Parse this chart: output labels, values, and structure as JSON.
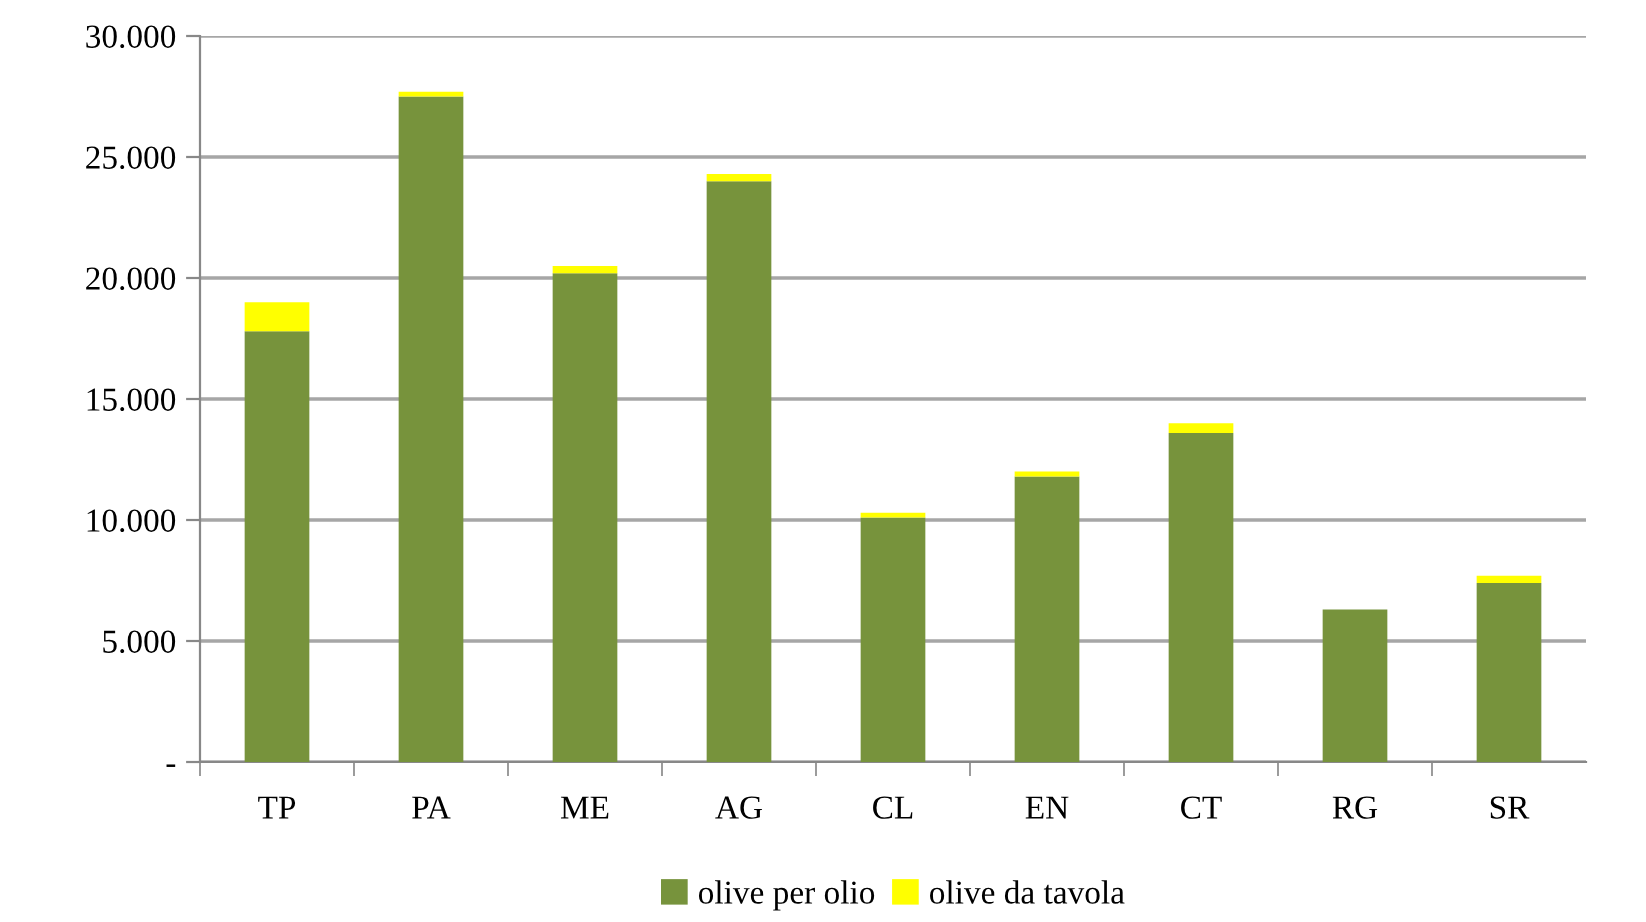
{
  "chart_data": {
    "type": "bar",
    "stacked": true,
    "categories": [
      "TP",
      "PA",
      "ME",
      "AG",
      "CL",
      "EN",
      "CT",
      "RG",
      "SR"
    ],
    "series": [
      {
        "name": "olive per olio",
        "color": "#77933c",
        "values": [
          17800,
          27500,
          20200,
          24000,
          10100,
          11800,
          13600,
          6300,
          7400
        ]
      },
      {
        "name": "olive da tavola",
        "color": "#ffff00",
        "values": [
          1200,
          200,
          300,
          300,
          200,
          200,
          400,
          0,
          300
        ]
      }
    ],
    "ylim": [
      0,
      30000
    ],
    "yticks": [
      {
        "value": 0,
        "label": "-"
      },
      {
        "value": 5000,
        "label": "5.000"
      },
      {
        "value": 10000,
        "label": "10.000"
      },
      {
        "value": 15000,
        "label": "15.000"
      },
      {
        "value": 20000,
        "label": "20.000"
      },
      {
        "value": 25000,
        "label": "25.000"
      },
      {
        "value": 30000,
        "label": "30.000"
      }
    ],
    "grid": "y",
    "legend": "bottom"
  }
}
